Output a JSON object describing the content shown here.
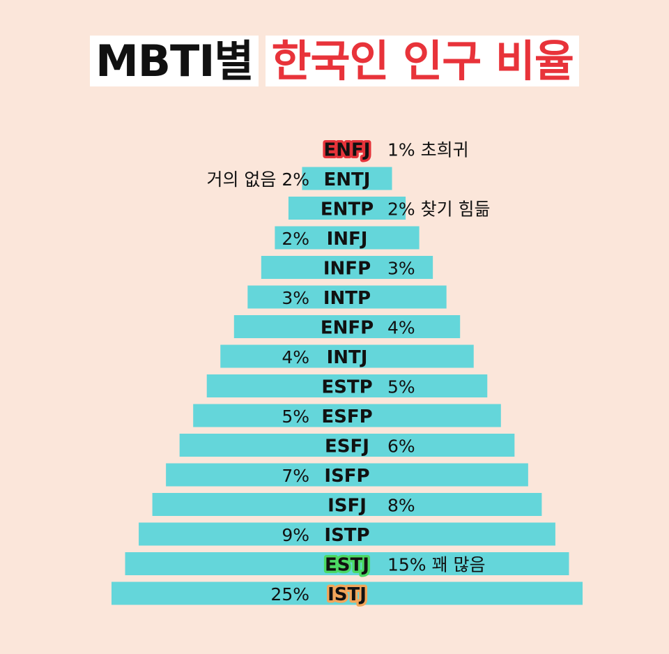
{
  "title": {
    "part1": "MBTI별",
    "part2": "한국인 인구 비율",
    "part1_color": "#111111",
    "part2_color": "#E8333A"
  },
  "colors": {
    "background": "#FBE6DA",
    "bar": "#64D6DA",
    "highlight_enfj": "#E5333A",
    "highlight_estj": "#4CD964",
    "highlight_istj": "#F2A65A"
  },
  "chart_data": {
    "type": "bar",
    "orientation": "horizontal-centered-pyramid",
    "categories": [
      "ENFJ",
      "ENTJ",
      "ENTP",
      "INFJ",
      "INFP",
      "INTP",
      "ENFP",
      "INTJ",
      "ESTP",
      "ESFP",
      "ESFJ",
      "ISFP",
      "ISFJ",
      "ISTP",
      "ESTJ",
      "ISTJ"
    ],
    "values": [
      1,
      2,
      2,
      2,
      3,
      3,
      4,
      4,
      5,
      5,
      6,
      7,
      8,
      9,
      15,
      25
    ],
    "value_labels": [
      "1% 초희귀",
      "거의 없음 2%",
      "2% 찾기 힘듦",
      "2%",
      "3%",
      "3%",
      "4%",
      "4%",
      "5%",
      "5%",
      "6%",
      "7%",
      "8%",
      "9%",
      "15% 꽤 많음",
      "25%"
    ],
    "label_side": [
      "right",
      "left",
      "right",
      "left",
      "right",
      "left",
      "right",
      "left",
      "right",
      "left",
      "right",
      "left",
      "right",
      "left",
      "right",
      "left"
    ],
    "highlights": {
      "ENFJ": "#E5333A",
      "ESTJ": "#4CD964",
      "ISTJ": "#F2A65A"
    }
  }
}
